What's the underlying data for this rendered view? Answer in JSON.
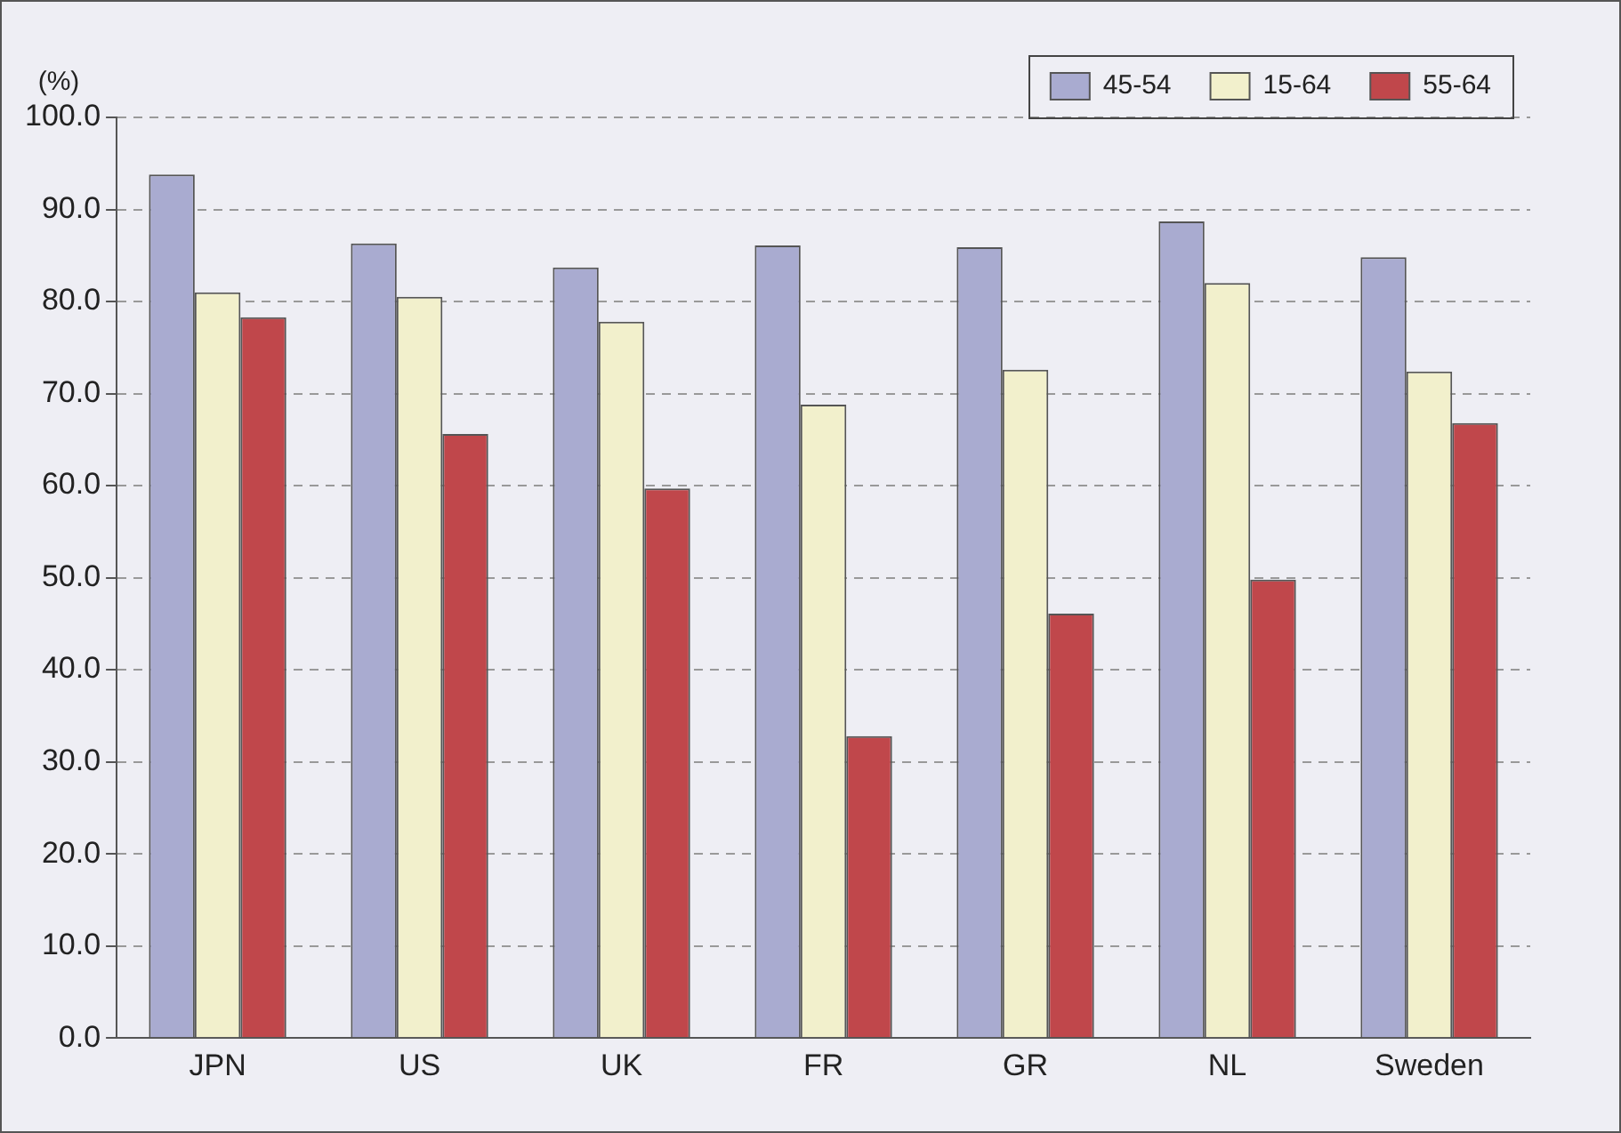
{
  "chart_data": {
    "type": "bar",
    "ylabel": "(%)",
    "categories": [
      "JPN",
      "US",
      "UK",
      "FR",
      "GR",
      "NL",
      "Sweden"
    ],
    "series": [
      {
        "name": "45-54",
        "color": "#a9abd0",
        "values": [
          93.8,
          86.3,
          83.7,
          86.1,
          85.9,
          88.7,
          84.8
        ]
      },
      {
        "name": "15-64",
        "color": "#f2f0cc",
        "values": [
          81.0,
          80.5,
          77.8,
          68.8,
          72.6,
          82.0,
          72.4
        ]
      },
      {
        "name": "55-64",
        "color": "#c0474b",
        "values": [
          78.3,
          65.6,
          59.7,
          32.8,
          46.1,
          49.8,
          66.8
        ]
      }
    ],
    "ylim": [
      0,
      100
    ],
    "yticks": [
      {
        "value": 0,
        "label": "0.0"
      },
      {
        "value": 10,
        "label": "10.0"
      },
      {
        "value": 20,
        "label": "20.0"
      },
      {
        "value": 30,
        "label": "30.0"
      },
      {
        "value": 40,
        "label": "40.0"
      },
      {
        "value": 50,
        "label": "50.0"
      },
      {
        "value": 60,
        "label": "60.0"
      },
      {
        "value": 70,
        "label": "70.0"
      },
      {
        "value": 80,
        "label": "80.0"
      },
      {
        "value": 90,
        "label": "90.0"
      },
      {
        "value": 100,
        "label": "100.0"
      }
    ],
    "grid": "y",
    "legend": "top right"
  }
}
